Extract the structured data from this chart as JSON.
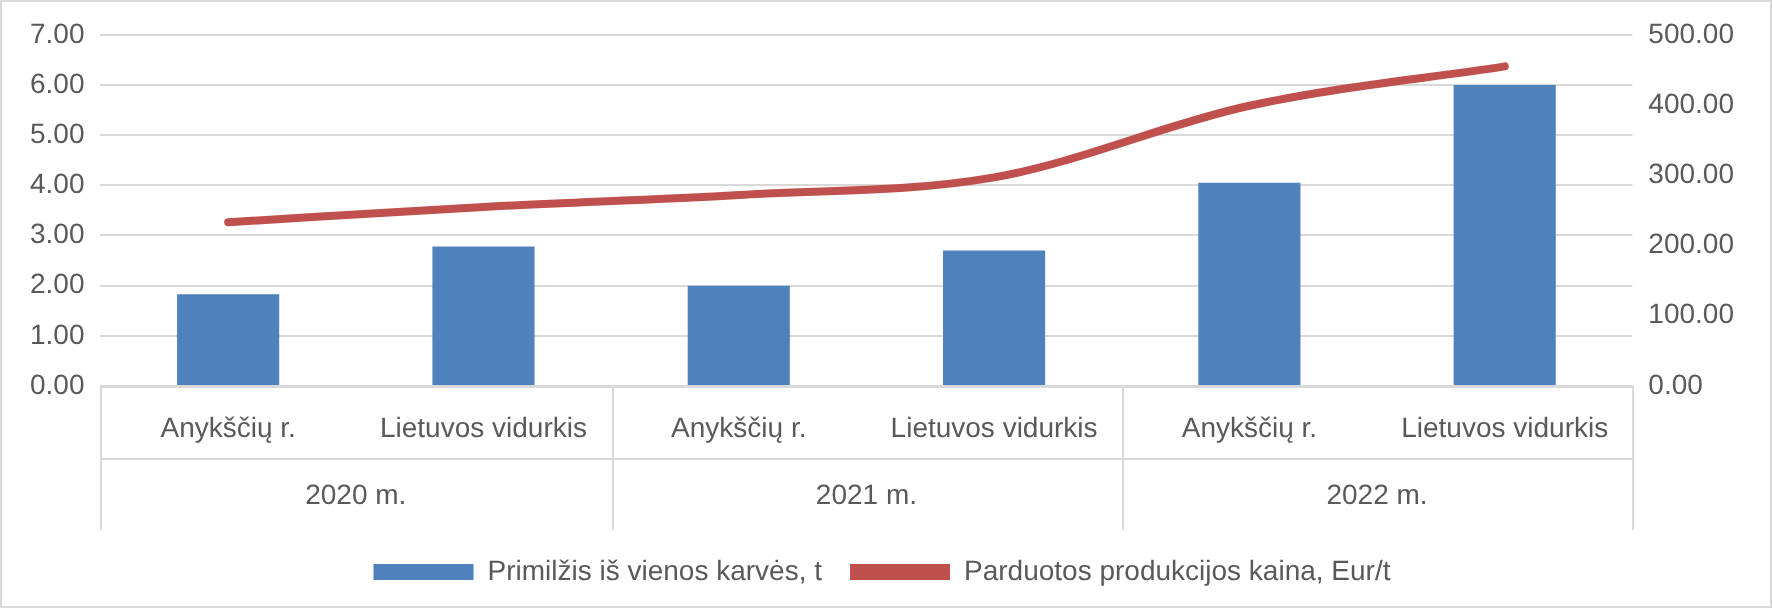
{
  "chart_data": {
    "type": "bar",
    "categories": [
      "Anykščių r.",
      "Lietuvos vidurkis",
      "Anykščių r.",
      "Lietuvos vidurkis",
      "Anykščių r.",
      "Lietuvos vidurkis"
    ],
    "annotations": [
      "2020 m.",
      "2021 m.",
      "2022 m."
    ],
    "series": [
      {
        "name": "Primilžis iš vienos karvės, t",
        "color": "#4f81bd",
        "values": [
          1.83,
          2.78,
          2.0,
          2.7,
          4.05,
          6.0
        ]
      },
      {
        "name": "Parduotos produkcijos kaina, Eur/t",
        "type": "line",
        "axis": "y2",
        "color": "#c0504d",
        "values": [
          233,
          255,
          272,
          297,
          399,
          455
        ]
      }
    ],
    "ylim": [
      0,
      7
    ],
    "yticks": [
      {
        "value": 0,
        "label": "0.00"
      },
      {
        "value": 1,
        "label": "1.00"
      },
      {
        "value": 2,
        "label": "2.00"
      },
      {
        "value": 3,
        "label": "3.00"
      },
      {
        "value": 4,
        "label": "4.00"
      },
      {
        "value": 5,
        "label": "5.00"
      },
      {
        "value": 6,
        "label": "6.00"
      },
      {
        "value": 7,
        "label": "7.00"
      }
    ],
    "y2lim": [
      0,
      500
    ],
    "y2ticks": [
      {
        "value": 0,
        "label": "0.00"
      },
      {
        "value": 100,
        "label": "100.00"
      },
      {
        "value": 200,
        "label": "200.00"
      },
      {
        "value": 300,
        "label": "300.00"
      },
      {
        "value": 400,
        "label": "400.00"
      },
      {
        "value": 500,
        "label": "500.00"
      }
    ],
    "grid": "y",
    "legend": "bottom"
  }
}
